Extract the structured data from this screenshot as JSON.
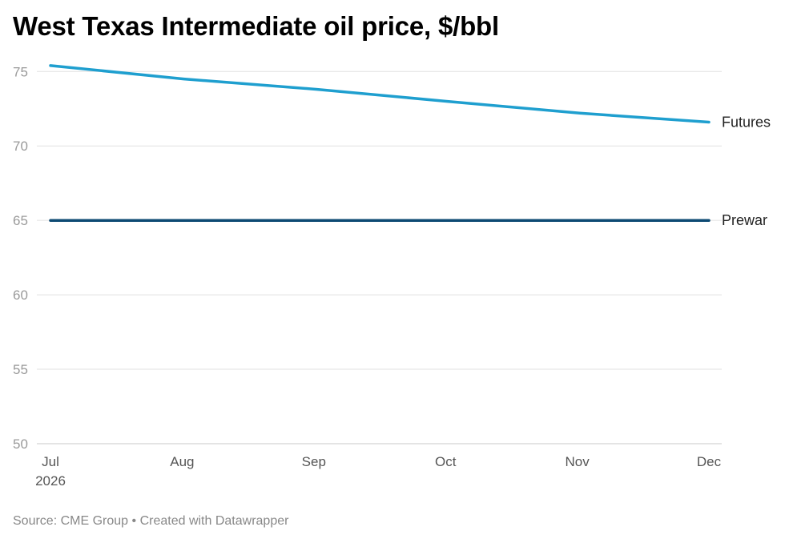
{
  "chart_data": {
    "type": "line",
    "title": "West Texas Intermediate oil price, $/bbl",
    "x_categories": [
      "Jul",
      "Aug",
      "Sep",
      "Oct",
      "Nov",
      "Dec"
    ],
    "x_year_label": "2026",
    "yticks": [
      "50",
      "55",
      "60",
      "65",
      "70",
      "75"
    ],
    "ylim": [
      50,
      75.5
    ],
    "grid": true,
    "legend": "direct labels at line ends (right)",
    "series": [
      {
        "name": "Futures",
        "color": "#1f9fcf",
        "points": [
          {
            "x": "2026-07-01",
            "y": 75.4
          },
          {
            "x": "2026-08-01",
            "y": 74.5
          },
          {
            "x": "2026-09-01",
            "y": 73.8
          },
          {
            "x": "2026-10-01",
            "y": 73.0
          },
          {
            "x": "2026-11-01",
            "y": 72.2
          },
          {
            "x": "2026-12-01",
            "y": 71.6
          }
        ]
      },
      {
        "name": "Prewar",
        "color": "#0d4a73",
        "points": [
          {
            "x": "2026-07-01",
            "y": 65
          },
          {
            "x": "2026-12-01",
            "y": 65
          }
        ]
      }
    ]
  },
  "footer": {
    "source": "Source: CME Group",
    "separator": "•",
    "credit": "Created with Datawrapper"
  }
}
